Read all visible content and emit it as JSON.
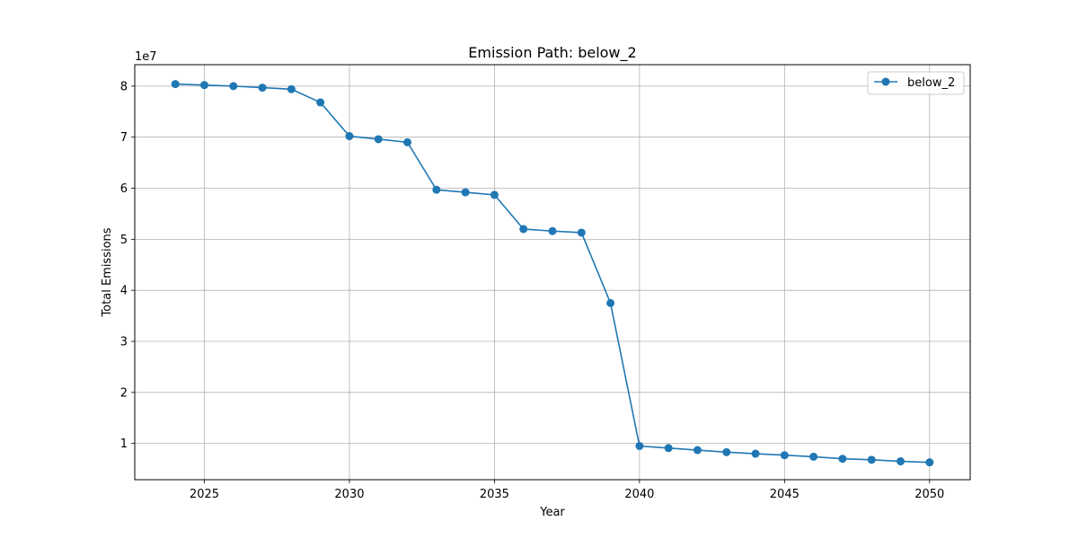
{
  "chart_data": {
    "type": "line",
    "title": "Emission Path: below_2",
    "xlabel": "Year",
    "ylabel": "Total Emissions",
    "y_offset_label": "1e7",
    "y_scale_factor": 10000000,
    "xlim": [
      2022.6,
      2051.4
    ],
    "ylim": [
      2900000,
      84200000
    ],
    "x_ticks": [
      2025,
      2030,
      2035,
      2040,
      2045,
      2050
    ],
    "y_ticks": [
      10000000,
      20000000,
      30000000,
      40000000,
      50000000,
      60000000,
      70000000,
      80000000
    ],
    "grid": true,
    "legend_position": "top-right",
    "series": [
      {
        "name": "below_2",
        "color": "#1f77b4",
        "marker": "circle",
        "x": [
          2024,
          2025,
          2026,
          2027,
          2028,
          2029,
          2030,
          2031,
          2032,
          2033,
          2034,
          2035,
          2036,
          2037,
          2038,
          2039,
          2040,
          2041,
          2042,
          2043,
          2044,
          2045,
          2046,
          2047,
          2048,
          2049,
          2050
        ],
        "y": [
          80400000,
          80200000,
          80000000,
          79700000,
          79400000,
          76800000,
          70200000,
          69600000,
          69000000,
          59700000,
          59200000,
          58700000,
          52000000,
          51600000,
          51300000,
          37500000,
          9500000,
          9100000,
          8700000,
          8300000,
          8000000,
          7700000,
          7400000,
          7000000,
          6800000,
          6500000,
          6300000
        ]
      }
    ]
  }
}
